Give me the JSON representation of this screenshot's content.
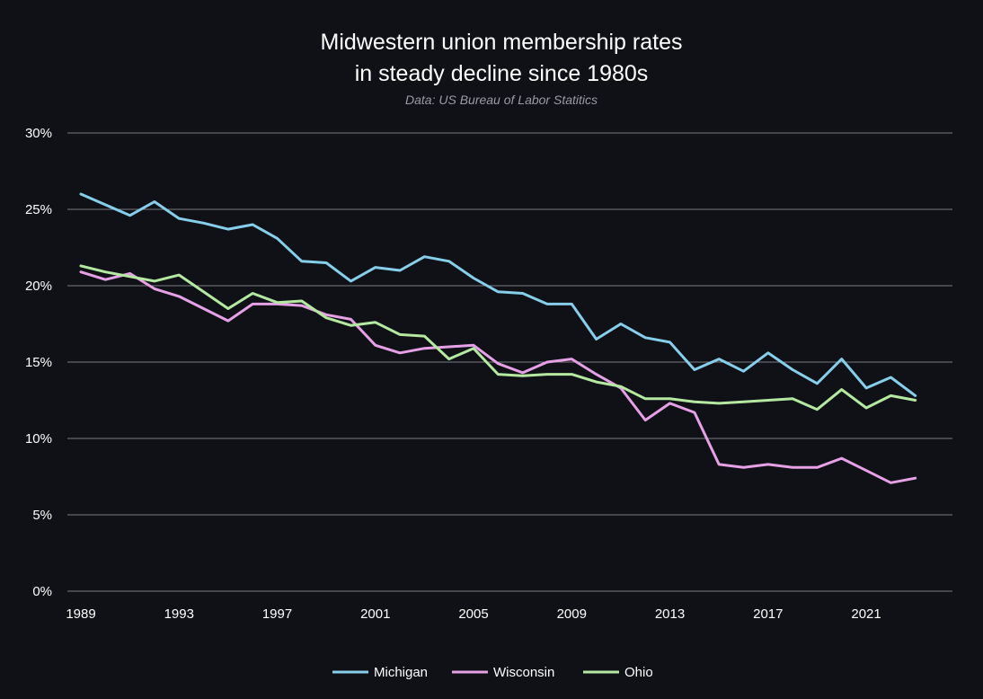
{
  "chart_data": {
    "type": "line",
    "title_line1": "Midwestern union membership rates",
    "title_line2": "in steady decline since 1980s",
    "subtitle": "Data: US Bureau of Labor Statitics",
    "xlabel": "",
    "ylabel": "",
    "xlim": [
      1989,
      2024
    ],
    "ylim": [
      0,
      30
    ],
    "grid": true,
    "legend_position": "bottom",
    "x_ticks": [
      1989,
      1993,
      1997,
      2001,
      2005,
      2009,
      2013,
      2017,
      2021
    ],
    "x_tick_labels": [
      "1989",
      "1993",
      "1997",
      "2001",
      "2005",
      "2009",
      "2013",
      "2017",
      "2021"
    ],
    "y_ticks": [
      0,
      5,
      10,
      15,
      20,
      25,
      30
    ],
    "y_tick_labels": [
      "0%",
      "5%",
      "10%",
      "15%",
      "20%",
      "25%",
      "30%"
    ],
    "x": [
      1989,
      1990,
      1991,
      1992,
      1993,
      1994,
      1995,
      1996,
      1997,
      1998,
      1999,
      2000,
      2001,
      2002,
      2003,
      2004,
      2005,
      2006,
      2007,
      2008,
      2009,
      2010,
      2011,
      2012,
      2013,
      2014,
      2015,
      2016,
      2017,
      2018,
      2019,
      2020,
      2021,
      2022,
      2023,
      2024
    ],
    "series": [
      {
        "name": "Michigan",
        "color": "#87ceeb",
        "values": [
          26.0,
          25.3,
          24.6,
          25.5,
          24.4,
          24.1,
          23.7,
          24.0,
          23.1,
          21.6,
          21.5,
          20.3,
          21.2,
          21.0,
          21.9,
          21.6,
          20.5,
          19.6,
          19.5,
          18.8,
          18.8,
          16.5,
          17.5,
          16.6,
          16.3,
          14.5,
          15.2,
          14.4,
          15.6,
          14.5,
          13.6,
          15.2,
          13.3,
          14.0,
          12.8,
          null
        ]
      },
      {
        "name": "Wisconsin",
        "color": "#e6a0e6",
        "values": [
          20.9,
          20.4,
          20.8,
          19.8,
          19.3,
          18.5,
          17.7,
          18.8,
          18.8,
          18.7,
          18.1,
          17.8,
          16.1,
          15.6,
          15.9,
          16.0,
          16.1,
          14.9,
          14.3,
          15.0,
          15.2,
          14.2,
          13.3,
          11.2,
          12.3,
          11.7,
          8.3,
          8.1,
          8.3,
          8.1,
          8.1,
          8.7,
          7.9,
          7.1,
          7.4,
          null
        ]
      },
      {
        "name": "Ohio",
        "color": "#b5e8a0",
        "values": [
          21.3,
          20.9,
          20.6,
          20.3,
          20.7,
          19.6,
          18.5,
          19.5,
          18.9,
          19.0,
          17.9,
          17.4,
          17.6,
          16.8,
          16.7,
          15.2,
          15.9,
          14.2,
          14.1,
          14.2,
          14.2,
          13.7,
          13.4,
          12.6,
          12.6,
          12.4,
          12.3,
          12.4,
          12.5,
          12.6,
          11.9,
          13.2,
          12.0,
          12.8,
          12.5,
          null
        ]
      }
    ]
  }
}
